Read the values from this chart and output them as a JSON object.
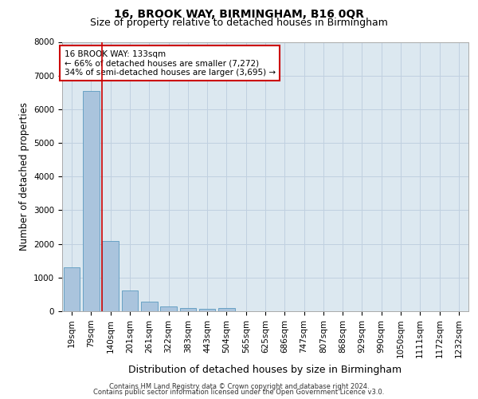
{
  "title": "16, BROOK WAY, BIRMINGHAM, B16 0QR",
  "subtitle": "Size of property relative to detached houses in Birmingham",
  "xlabel": "Distribution of detached houses by size in Birmingham",
  "ylabel": "Number of detached properties",
  "categories": [
    "19sqm",
    "79sqm",
    "140sqm",
    "201sqm",
    "261sqm",
    "322sqm",
    "383sqm",
    "443sqm",
    "504sqm",
    "565sqm",
    "625sqm",
    "686sqm",
    "747sqm",
    "807sqm",
    "868sqm",
    "929sqm",
    "990sqm",
    "1050sqm",
    "1111sqm",
    "1172sqm",
    "1232sqm"
  ],
  "values": [
    1300,
    6550,
    2080,
    620,
    280,
    140,
    85,
    70,
    100,
    0,
    0,
    0,
    0,
    0,
    0,
    0,
    0,
    0,
    0,
    0,
    0
  ],
  "bar_color": "#aac4dd",
  "bar_edge_color": "#5a9abf",
  "property_line_index": 2,
  "property_line_color": "#cc0000",
  "annotation_text": "16 BROOK WAY: 133sqm\n← 66% of detached houses are smaller (7,272)\n34% of semi-detached houses are larger (3,695) →",
  "annotation_box_color": "#ffffff",
  "annotation_box_edge_color": "#cc0000",
  "ylim": [
    0,
    8000
  ],
  "yticks": [
    0,
    1000,
    2000,
    3000,
    4000,
    5000,
    6000,
    7000,
    8000
  ],
  "background_color": "#ffffff",
  "plot_bg_color": "#dce8f0",
  "grid_color": "#c0d0e0",
  "footer_line1": "Contains HM Land Registry data © Crown copyright and database right 2024.",
  "footer_line2": "Contains public sector information licensed under the Open Government Licence v3.0.",
  "title_fontsize": 10,
  "subtitle_fontsize": 9,
  "tick_fontsize": 7.5,
  "ylabel_fontsize": 8.5,
  "xlabel_fontsize": 9,
  "annotation_fontsize": 7.5,
  "footer_fontsize": 6
}
